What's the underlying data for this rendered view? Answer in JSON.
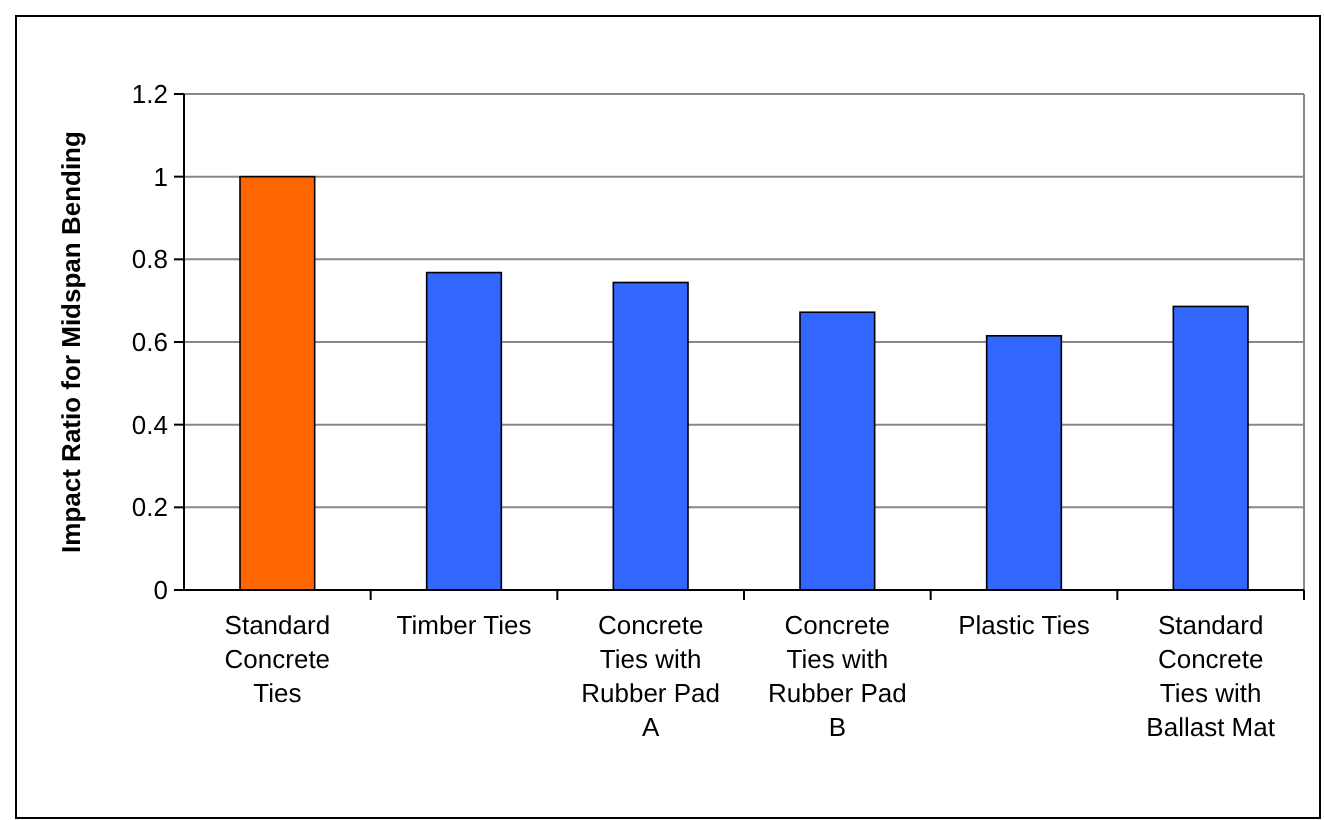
{
  "chart_data": {
    "type": "bar",
    "ylabel": "Impact Ratio for Midspan Bending",
    "categories": [
      "Standard Concrete Ties",
      "Timber Ties",
      "Concrete Ties with Rubber Pad A",
      "Concrete Ties with Rubber Pad B",
      "Plastic Ties",
      "Standard Concrete Ties with Ballast Mat"
    ],
    "values": [
      1,
      0.768,
      0.744,
      0.672,
      0.615,
      0.686
    ],
    "colors": [
      "#ff6600",
      "#3366ff",
      "#3366ff",
      "#3366ff",
      "#3366ff",
      "#3366ff"
    ],
    "ylim": [
      0,
      1.2
    ],
    "yticks": [
      0,
      0.2,
      0.4,
      0.6,
      0.8,
      1,
      1.2
    ],
    "grid": "y"
  }
}
